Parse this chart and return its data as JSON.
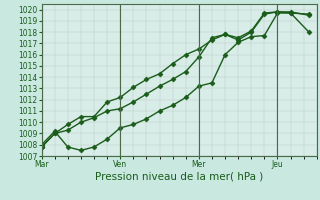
{
  "bg_color": "#c8e8e0",
  "plot_bg_color": "#d8ece8",
  "grid_color_minor": "#c0c8c0",
  "grid_color_major": "#5a7a5a",
  "line_color": "#1a5c1a",
  "marker": "D",
  "marker_size": 2.5,
  "linewidth": 1.0,
  "ylim": [
    1007,
    1020.5
  ],
  "yticks": [
    1007,
    1008,
    1009,
    1010,
    1011,
    1012,
    1013,
    1014,
    1015,
    1016,
    1017,
    1018,
    1019,
    1020
  ],
  "xlabel": "Pression niveau de la mer( hPa )",
  "xtick_labels": [
    "Mar",
    "Ven",
    "Mer",
    "Jeu"
  ],
  "xtick_positions": [
    0,
    3,
    6,
    9
  ],
  "vline_positions": [
    0,
    3,
    6,
    9
  ],
  "xlim": [
    0,
    10.5
  ],
  "line1_x": [
    0,
    0.5,
    1.0,
    1.5,
    2.0,
    2.5,
    3.0,
    3.5,
    4.0,
    4.5,
    5.0,
    5.5,
    6.0,
    6.5,
    7.0,
    7.5,
    8.0,
    8.5,
    9.0,
    9.5,
    10.2
  ],
  "line1_y": [
    1007.8,
    1009.0,
    1009.3,
    1010.0,
    1010.4,
    1011.0,
    1011.2,
    1011.8,
    1012.5,
    1013.2,
    1013.8,
    1014.5,
    1015.8,
    1017.5,
    1017.8,
    1017.3,
    1018.0,
    1019.6,
    1019.8,
    1019.7,
    1018.0
  ],
  "line2_x": [
    0,
    0.5,
    1.0,
    1.5,
    2.0,
    2.5,
    3.0,
    3.5,
    4.0,
    4.5,
    5.0,
    5.5,
    6.0,
    6.5,
    7.0,
    7.5,
    8.0,
    8.5,
    9.0,
    9.5,
    10.2
  ],
  "line2_y": [
    1007.8,
    1009.0,
    1009.8,
    1010.5,
    1010.5,
    1011.8,
    1012.2,
    1013.1,
    1013.8,
    1014.3,
    1015.2,
    1016.0,
    1016.5,
    1017.3,
    1017.8,
    1017.5,
    1018.1,
    1019.7,
    1019.8,
    1019.8,
    1019.5
  ],
  "line3_x": [
    0,
    0.5,
    1.0,
    1.5,
    2.0,
    2.5,
    3.0,
    3.5,
    4.0,
    4.5,
    5.0,
    5.5,
    6.0,
    6.5,
    7.0,
    7.5,
    8.0,
    8.5,
    9.0,
    9.5,
    10.2
  ],
  "line3_y": [
    1008.0,
    1009.2,
    1007.8,
    1007.5,
    1007.8,
    1008.5,
    1009.5,
    1009.8,
    1010.3,
    1011.0,
    1011.5,
    1012.2,
    1013.2,
    1013.5,
    1016.0,
    1017.1,
    1017.6,
    1017.7,
    1019.7,
    1019.7,
    1019.6
  ],
  "tick_fontsize": 5.5,
  "xlabel_fontsize": 7.5
}
